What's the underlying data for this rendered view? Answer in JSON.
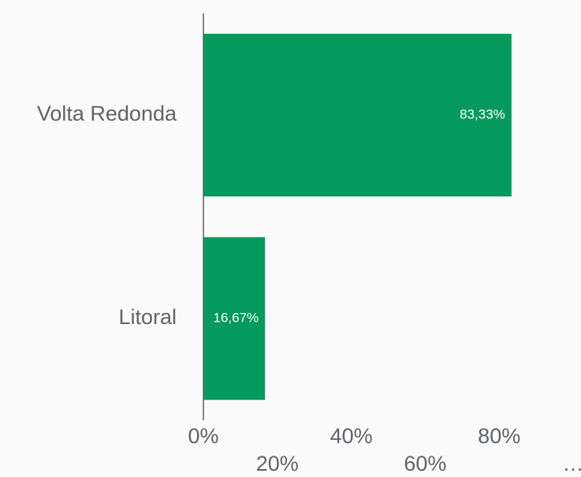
{
  "chart_data": {
    "type": "hbar",
    "categories": [
      "Volta Redonda",
      "Litoral"
    ],
    "values": [
      83.33,
      16.67
    ],
    "value_labels": [
      "83,33%",
      "16,67%"
    ],
    "color": "#049a5b",
    "xlim": [
      0,
      100
    ],
    "xticks": [
      {
        "value": 0,
        "label": "0%"
      },
      {
        "value": 20,
        "label": "20%"
      },
      {
        "value": 40,
        "label": "40%"
      },
      {
        "value": 60,
        "label": "60%"
      },
      {
        "value": 80,
        "label": "80%"
      },
      {
        "value": 100,
        "label": "…"
      }
    ],
    "grid": false
  }
}
